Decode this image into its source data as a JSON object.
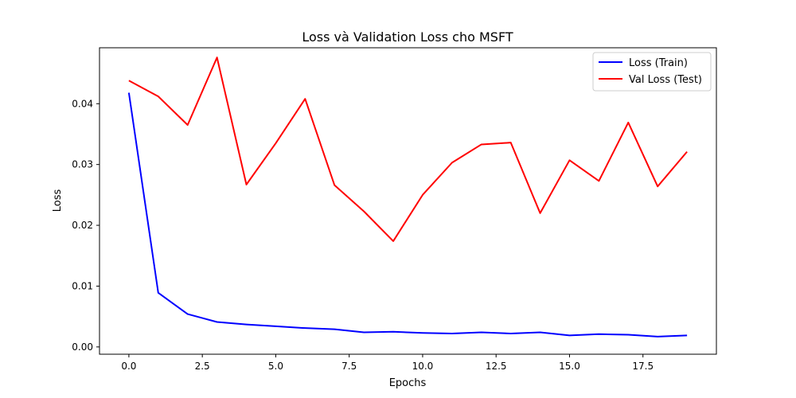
{
  "chart_data": {
    "type": "line",
    "title": "Loss và Validation Loss cho MSFT",
    "xlabel": "Epochs",
    "ylabel": "Loss",
    "xlim": [
      -1,
      20
    ],
    "ylim": [
      -0.0012,
      0.0492
    ],
    "x": [
      0,
      1,
      2,
      3,
      4,
      5,
      6,
      7,
      8,
      9,
      10,
      11,
      12,
      13,
      14,
      15,
      16,
      17,
      18,
      19
    ],
    "xticks": [
      0.0,
      2.5,
      5.0,
      7.5,
      10.0,
      12.5,
      15.0,
      17.5
    ],
    "xtick_labels": [
      "0.0",
      "2.5",
      "5.0",
      "7.5",
      "10.0",
      "12.5",
      "15.0",
      "17.5"
    ],
    "yticks": [
      0.0,
      0.01,
      0.02,
      0.03,
      0.04
    ],
    "ytick_labels": [
      "0.00",
      "0.01",
      "0.02",
      "0.03",
      "0.04"
    ],
    "grid": false,
    "legend_position": "top-right",
    "series": [
      {
        "name": "Loss (Train)",
        "color": "#0000ff",
        "values": [
          0.0418,
          0.0089,
          0.0054,
          0.0041,
          0.0037,
          0.0034,
          0.0031,
          0.0029,
          0.0024,
          0.0025,
          0.0023,
          0.0022,
          0.0024,
          0.0022,
          0.0024,
          0.0019,
          0.0021,
          0.002,
          0.0017,
          0.0019
        ]
      },
      {
        "name": "Val Loss (Test)",
        "color": "#ff0000",
        "values": [
          0.0438,
          0.0412,
          0.0365,
          0.0476,
          0.0267,
          0.0335,
          0.0408,
          0.0266,
          0.0223,
          0.0174,
          0.025,
          0.0303,
          0.0333,
          0.0336,
          0.022,
          0.0307,
          0.0273,
          0.0369,
          0.0264,
          0.0321
        ]
      }
    ]
  }
}
